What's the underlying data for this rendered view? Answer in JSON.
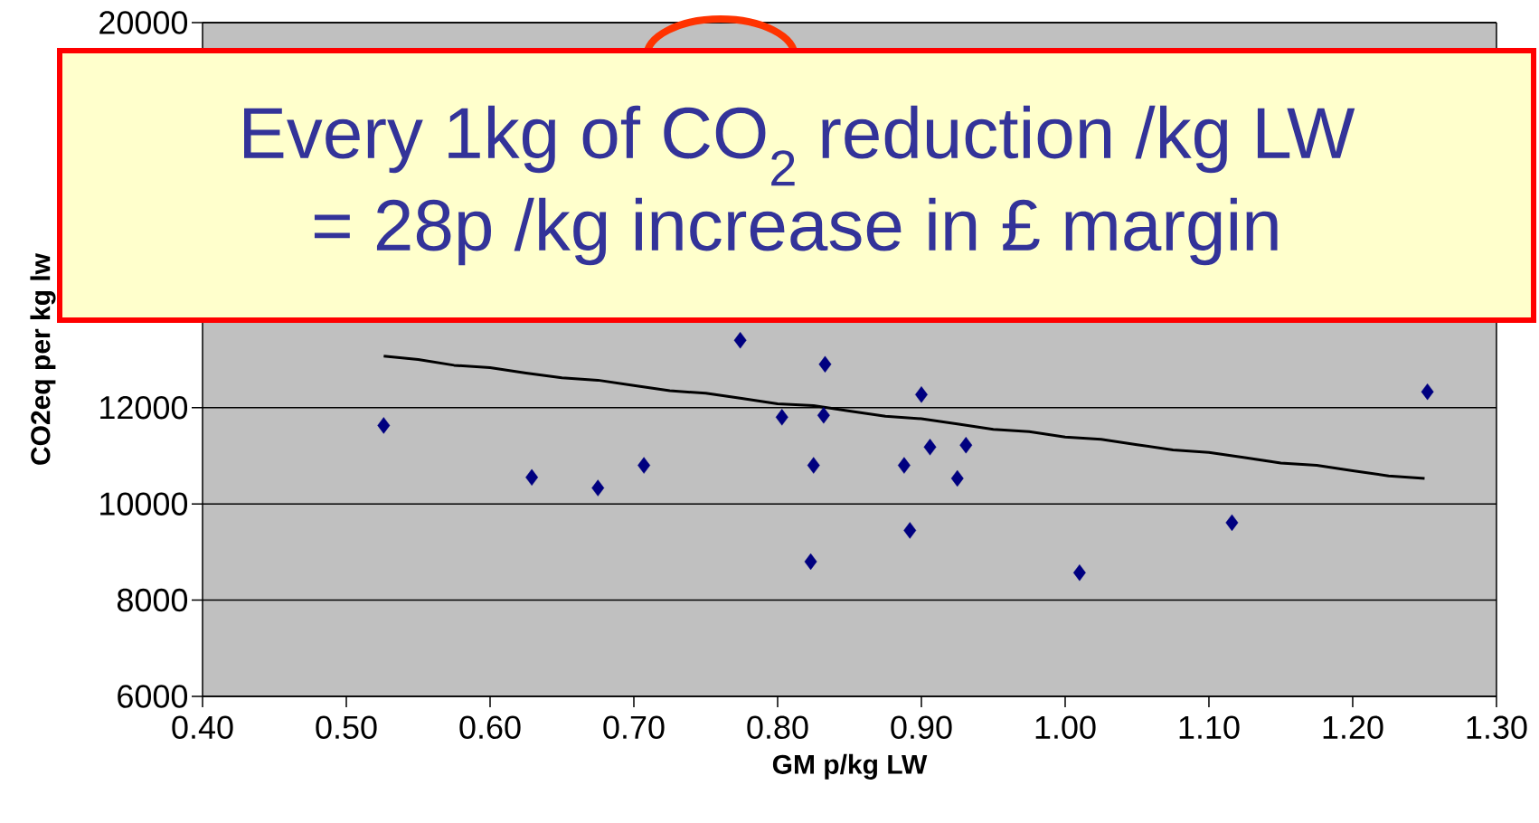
{
  "chart_data": {
    "type": "scatter",
    "xlabel": "GM p/kg LW",
    "ylabel": "CO2eq per kg lw",
    "xlim": [
      0.4,
      1.3
    ],
    "ylim": [
      6000,
      20000
    ],
    "xticks": [
      {
        "value": 0.4,
        "label": "0.40"
      },
      {
        "value": 0.5,
        "label": "0.50"
      },
      {
        "value": 0.6,
        "label": "0.60"
      },
      {
        "value": 0.7,
        "label": "0.70"
      },
      {
        "value": 0.8,
        "label": "0.80"
      },
      {
        "value": 0.9,
        "label": "0.90"
      },
      {
        "value": 1.0,
        "label": "1.00"
      },
      {
        "value": 1.1,
        "label": "1.10"
      },
      {
        "value": 1.2,
        "label": "1.20"
      },
      {
        "value": 1.3,
        "label": "1.30"
      }
    ],
    "yticks": [
      6000,
      8000,
      10000,
      12000,
      20000
    ],
    "grid": "y",
    "annotations": [
      "Every 1kg of CO$_{2}$ reduction /kg LW",
      "= 28p /kg increase in £ margin"
    ],
    "series": [
      {
        "type": "scatter",
        "marker": "diamond",
        "color": "#000080",
        "x": [
          0.526,
          0.629,
          0.675,
          0.707,
          0.774,
          0.803,
          0.833,
          0.832,
          0.825,
          0.823,
          0.9,
          0.888,
          0.906,
          0.931,
          0.925,
          0.892,
          1.01,
          1.116,
          1.252
        ],
        "values": [
          11630,
          10550,
          10330,
          10800,
          13400,
          11800,
          12900,
          11840,
          10800,
          8800,
          12270,
          10800,
          11180,
          11220,
          10530,
          9450,
          8570,
          9610,
          12330
        ]
      },
      {
        "type": "line",
        "marker": "none",
        "color": "#000000",
        "x": [
          0.526,
          0.55,
          0.575,
          0.6,
          0.625,
          0.65,
          0.675,
          0.7,
          0.725,
          0.75,
          0.775,
          0.8,
          0.825,
          0.85,
          0.875,
          0.9,
          0.925,
          0.95,
          0.975,
          1.0,
          1.025,
          1.05,
          1.075,
          1.1,
          1.125,
          1.15,
          1.175,
          1.2,
          1.225,
          1.25
        ],
        "values": [
          13070,
          13000,
          12880,
          12830,
          12720,
          12620,
          12570,
          12460,
          12350,
          12300,
          12190,
          12080,
          12040,
          11930,
          11820,
          11770,
          11660,
          11550,
          11500,
          11390,
          11340,
          11230,
          11120,
          11070,
          10960,
          10850,
          10800,
          10690,
          10580,
          10530
        ]
      }
    ]
  }
}
